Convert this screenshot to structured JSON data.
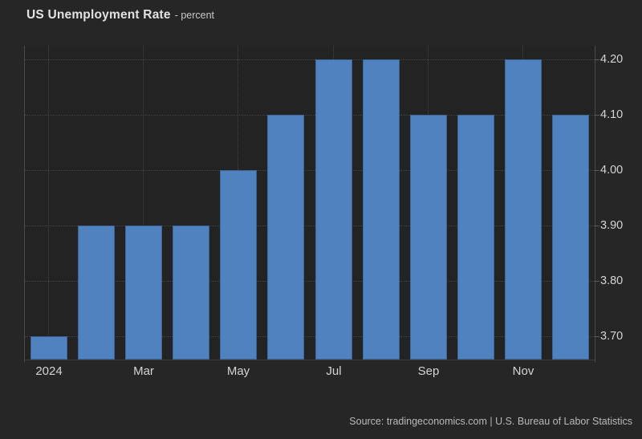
{
  "header": {
    "title": "US Unemployment Rate",
    "subtitle": "- percent"
  },
  "footer": {
    "source": "Source: tradingeconomics.com | U.S. Bureau of Labor Statistics"
  },
  "colors": {
    "bar": "#4f82bf",
    "background": "#262626",
    "plot_background": "#232323",
    "text": "#d4d4d4"
  },
  "chart_data": {
    "type": "bar",
    "title": "US Unemployment Rate",
    "unit": "percent",
    "categories": [
      "Jan 2024",
      "Feb 2024",
      "Mar 2024",
      "Apr 2024",
      "May 2024",
      "Jun 2024",
      "Jul 2024",
      "Aug 2024",
      "Sep 2024",
      "Oct 2024",
      "Nov 2024",
      "Dec 2024"
    ],
    "values": [
      3.7,
      3.9,
      3.9,
      3.9,
      4.0,
      4.1,
      4.2,
      4.2,
      4.1,
      4.1,
      4.2,
      4.1
    ],
    "x_tick_labels": [
      "2024",
      "Mar",
      "May",
      "Jul",
      "Sep",
      "Nov"
    ],
    "x_tick_bar_indices": [
      0,
      2,
      4,
      6,
      8,
      10
    ],
    "y_ticks": [
      3.7,
      3.8,
      3.9,
      4.0,
      4.1,
      4.2
    ],
    "y_tick_labels": [
      "3.70",
      "3.80",
      "3.90",
      "4.00",
      "4.10",
      "4.20"
    ],
    "ylim": [
      3.658,
      4.2246
    ],
    "grid": true,
    "legend_position": "none",
    "y_axis_side": "right",
    "bar_color": "#4f82bf"
  }
}
